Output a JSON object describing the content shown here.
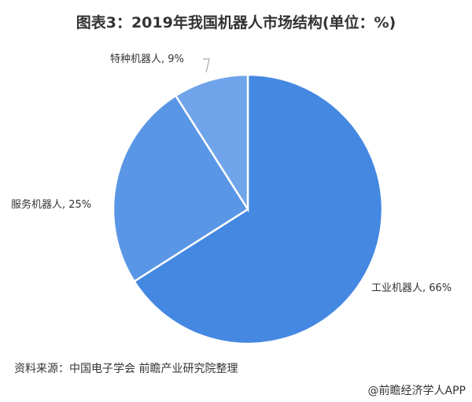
{
  "chart_data": {
    "type": "pie",
    "title": "图表3：2019年我国机器人市场结构(单位：%)",
    "slices": [
      {
        "label": "工业机器人",
        "value": 66,
        "display": "工业机器人, 66%",
        "color": "#4488e2"
      },
      {
        "label": "服务机器人",
        "value": 25,
        "display": "服务机器人, 25%",
        "color": "#5a96e6"
      },
      {
        "label": "特种机器人",
        "value": 9,
        "display": "特种机器人, 9%",
        "color": "#6fa4ea"
      }
    ],
    "start_angle": "top",
    "direction": "clockwise"
  },
  "footer": {
    "source": "资料来源：中国电子学会 前瞻产业研究院整理",
    "credit": "@前瞻经济学人APP"
  }
}
